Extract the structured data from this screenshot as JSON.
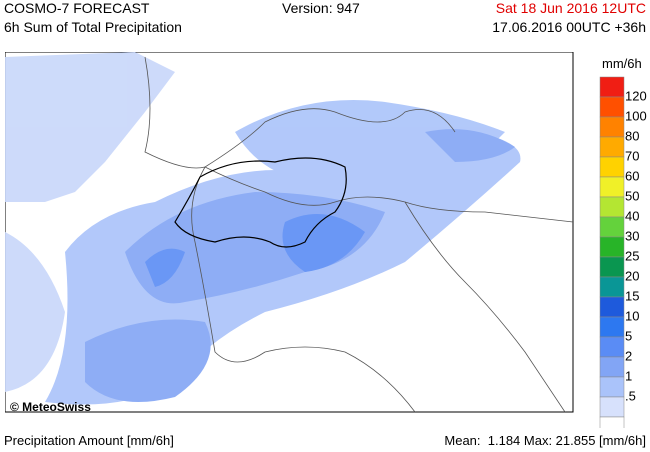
{
  "header": {
    "title": "COSMO-7 FORECAST",
    "subtitle": "6h Sum of Total Precipitation",
    "version": "Version: 947",
    "valid_time": "Sat 18 Jun 2016 12UTC",
    "run_time": "17.06.2016 00UTC +36h"
  },
  "legend": {
    "unit": "mm/6h",
    "labels": [
      "120",
      "100",
      "80",
      "70",
      "60",
      "50",
      "40",
      "30",
      "25",
      "20",
      "15",
      "10",
      "5",
      "2",
      "1",
      ".5"
    ],
    "colors": [
      "#f01e14",
      "#ff5000",
      "#ff8200",
      "#ffaa00",
      "#ffd200",
      "#f0f028",
      "#b4e632",
      "#64d23c",
      "#28b428",
      "#0a9650",
      "#0a9696",
      "#1e5adc",
      "#2d78f0",
      "#5a8cf5",
      "#82a5f5",
      "#aac3fa",
      "#d7e1fc",
      "#ffffff"
    ]
  },
  "map": {
    "credit": "© MeteoSwiss"
  },
  "footer": {
    "left": "Precipitation Amount [mm/6h]",
    "right": "Mean:  1.184 Max: 21.855 [mm/6h]"
  }
}
